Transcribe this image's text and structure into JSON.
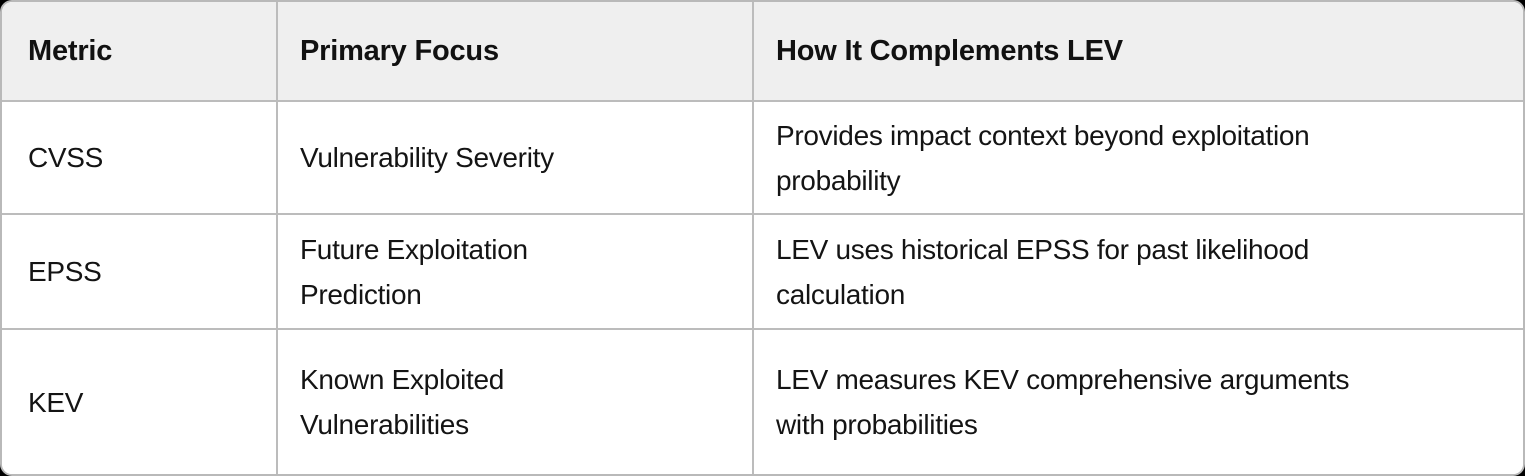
{
  "table": {
    "columns": [
      {
        "label": "Metric"
      },
      {
        "label": "Primary Focus"
      },
      {
        "label": "How It Complements LEV"
      }
    ],
    "rows": [
      {
        "metric": "CVSS",
        "focus": "Vulnerability Severity",
        "complement": "Provides impact context beyond exploitation\nprobability"
      },
      {
        "metric": "EPSS",
        "focus": "Future Exploitation\nPrediction",
        "complement": "LEV uses historical EPSS for past likelihood\ncalculation"
      },
      {
        "metric": "KEV",
        "focus": "Known Exploited\nVulnerabilities",
        "complement": "LEV measures KEV comprehensive arguments\nwith probabilities"
      }
    ]
  },
  "colors": {
    "card_background": "#ffffff",
    "header_background": "#efefef",
    "grid_line": "#bcbcbc",
    "text": "#141414"
  }
}
